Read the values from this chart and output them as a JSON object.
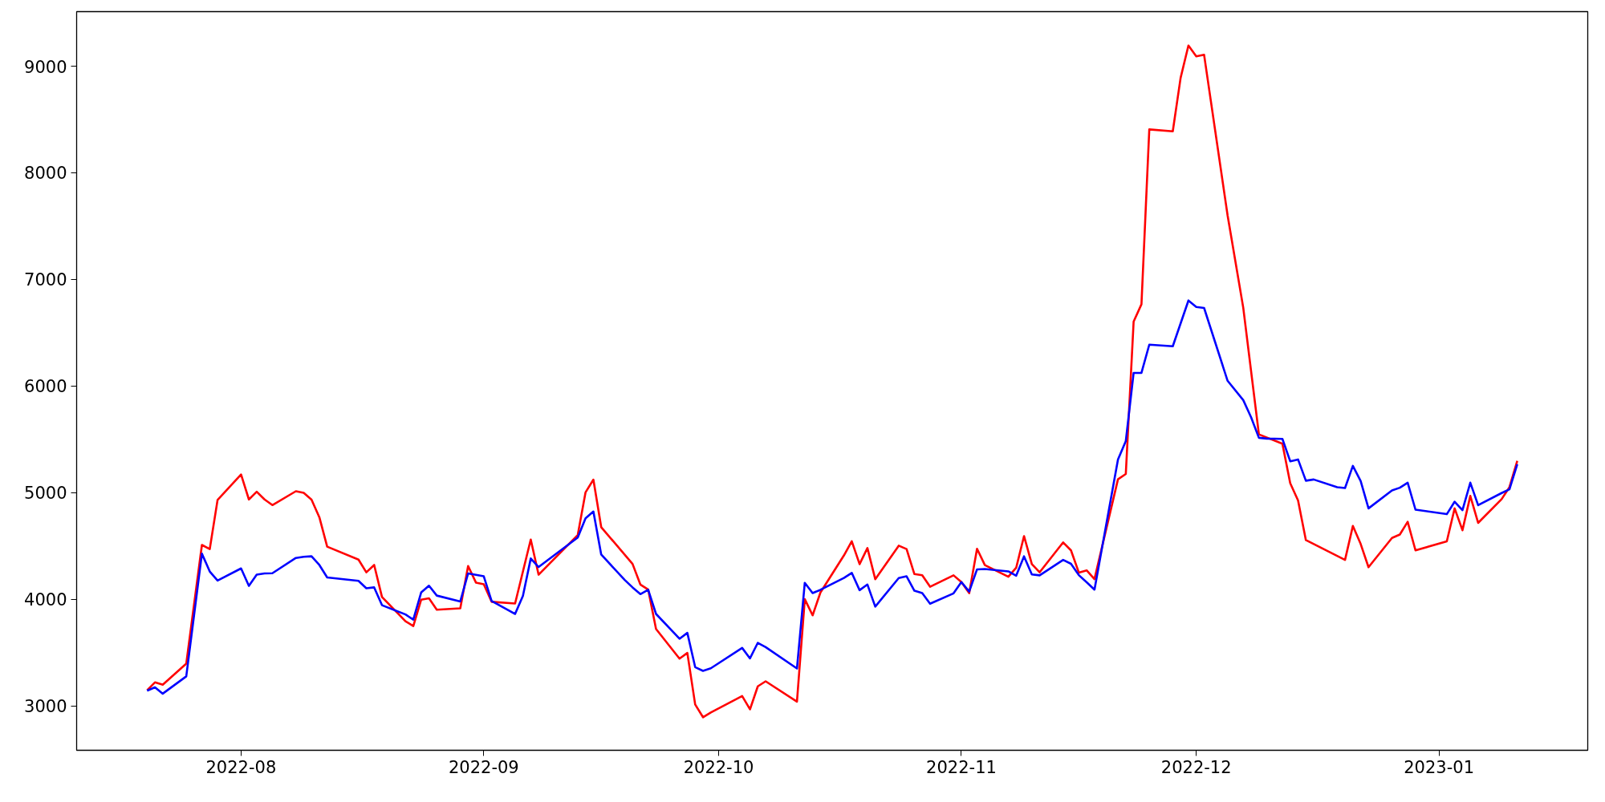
{
  "chart_data": {
    "type": "line",
    "xlim": [
      "2022-07-11",
      "2023-01-20"
    ],
    "ylim": [
      2583,
      9512
    ],
    "xticks": [
      {
        "value": "2022-08-01",
        "label": "2022-08"
      },
      {
        "value": "2022-09-01",
        "label": "2022-09"
      },
      {
        "value": "2022-10-01",
        "label": "2022-10"
      },
      {
        "value": "2022-11-01",
        "label": "2022-11"
      },
      {
        "value": "2022-12-01",
        "label": "2022-12"
      },
      {
        "value": "2023-01-01",
        "label": "2023-01"
      }
    ],
    "yticks": [
      3000,
      4000,
      5000,
      6000,
      7000,
      8000,
      9000
    ],
    "grid": false,
    "series": [
      {
        "color": "#ff0000",
        "x": [
          "2022-07-20",
          "2022-07-21",
          "2022-07-22",
          "2022-07-25",
          "2022-07-27",
          "2022-07-28",
          "2022-07-29",
          "2022-08-01",
          "2022-08-02",
          "2022-08-03",
          "2022-08-04",
          "2022-08-05",
          "2022-08-08",
          "2022-08-09",
          "2022-08-10",
          "2022-08-11",
          "2022-08-12",
          "2022-08-16",
          "2022-08-17",
          "2022-08-18",
          "2022-08-19",
          "2022-08-22",
          "2022-08-23",
          "2022-08-24",
          "2022-08-25",
          "2022-08-26",
          "2022-08-29",
          "2022-08-30",
          "2022-08-31",
          "2022-09-01",
          "2022-09-02",
          "2022-09-05",
          "2022-09-07",
          "2022-09-08",
          "2022-09-13",
          "2022-09-14",
          "2022-09-15",
          "2022-09-16",
          "2022-09-20",
          "2022-09-21",
          "2022-09-22",
          "2022-09-23",
          "2022-09-26",
          "2022-09-27",
          "2022-09-28",
          "2022-09-29",
          "2022-09-30",
          "2022-10-04",
          "2022-10-05",
          "2022-10-06",
          "2022-10-07",
          "2022-10-11",
          "2022-10-12",
          "2022-10-13",
          "2022-10-14",
          "2022-10-17",
          "2022-10-18",
          "2022-10-19",
          "2022-10-20",
          "2022-10-21",
          "2022-10-24",
          "2022-10-25",
          "2022-10-26",
          "2022-10-27",
          "2022-10-28",
          "2022-10-31",
          "2022-11-01",
          "2022-11-02",
          "2022-11-03",
          "2022-11-04",
          "2022-11-07",
          "2022-11-08",
          "2022-11-09",
          "2022-11-10",
          "2022-11-11",
          "2022-11-14",
          "2022-11-15",
          "2022-11-16",
          "2022-11-17",
          "2022-11-18",
          "2022-11-21",
          "2022-11-22",
          "2022-11-23",
          "2022-11-24",
          "2022-11-25",
          "2022-11-28",
          "2022-11-29",
          "2022-11-30",
          "2022-12-01",
          "2022-12-02",
          "2022-12-05",
          "2022-12-07",
          "2022-12-09",
          "2022-12-12",
          "2022-12-13",
          "2022-12-14",
          "2022-12-15",
          "2022-12-20",
          "2022-12-21",
          "2022-12-22",
          "2022-12-23",
          "2022-12-26",
          "2022-12-27",
          "2022-12-28",
          "2022-12-29",
          "2023-01-02",
          "2023-01-03",
          "2023-01-04",
          "2023-01-05",
          "2023-01-06",
          "2023-01-09",
          "2023-01-10",
          "2023-01-11"
        ],
        "values": [
          3146,
          3220,
          3198,
          3395,
          4509,
          4470,
          4931,
          5170,
          4936,
          5008,
          4936,
          4883,
          5013,
          4998,
          4934,
          4769,
          4493,
          4372,
          4252,
          4321,
          4021,
          3793,
          3748,
          3995,
          4008,
          3902,
          3915,
          4311,
          4156,
          4141,
          3976,
          3960,
          4560,
          4230,
          4602,
          5003,
          5122,
          4676,
          4331,
          4138,
          4090,
          3721,
          3443,
          3496,
          3013,
          2893,
          2938,
          3092,
          2967,
          3183,
          3230,
          3039,
          4000,
          3849,
          4063,
          4411,
          4544,
          4329,
          4480,
          4188,
          4502,
          4470,
          4236,
          4225,
          4117,
          4224,
          4161,
          4057,
          4473,
          4320,
          4211,
          4295,
          4592,
          4330,
          4253,
          4533,
          4458,
          4250,
          4271,
          4189,
          5125,
          5175,
          6604,
          6767,
          8407,
          8389,
          8890,
          9194,
          9093,
          9107,
          7601,
          6735,
          5546,
          5459,
          5088,
          4927,
          4555,
          4369,
          4687,
          4518,
          4300,
          4575,
          4607,
          4726,
          4458,
          4543,
          4852,
          4647,
          4969,
          4716,
          4939,
          5051,
          5298
        ]
      },
      {
        "color": "#0000ff",
        "x": [
          "2022-07-20",
          "2022-07-21",
          "2022-07-22",
          "2022-07-25",
          "2022-07-27",
          "2022-07-28",
          "2022-07-29",
          "2022-08-01",
          "2022-08-02",
          "2022-08-03",
          "2022-08-04",
          "2022-08-05",
          "2022-08-08",
          "2022-08-09",
          "2022-08-10",
          "2022-08-11",
          "2022-08-12",
          "2022-08-16",
          "2022-08-17",
          "2022-08-18",
          "2022-08-19",
          "2022-08-22",
          "2022-08-23",
          "2022-08-24",
          "2022-08-25",
          "2022-08-26",
          "2022-08-29",
          "2022-08-30",
          "2022-08-31",
          "2022-09-01",
          "2022-09-02",
          "2022-09-05",
          "2022-09-06",
          "2022-09-07",
          "2022-09-08",
          "2022-09-13",
          "2022-09-14",
          "2022-09-15",
          "2022-09-16",
          "2022-09-19",
          "2022-09-20",
          "2022-09-21",
          "2022-09-22",
          "2022-09-23",
          "2022-09-26",
          "2022-09-27",
          "2022-09-28",
          "2022-09-29",
          "2022-09-30",
          "2022-10-04",
          "2022-10-05",
          "2022-10-06",
          "2022-10-07",
          "2022-10-11",
          "2022-10-12",
          "2022-10-13",
          "2022-10-14",
          "2022-10-17",
          "2022-10-18",
          "2022-10-19",
          "2022-10-20",
          "2022-10-21",
          "2022-10-24",
          "2022-10-25",
          "2022-10-26",
          "2022-10-27",
          "2022-10-28",
          "2022-10-31",
          "2022-11-01",
          "2022-11-02",
          "2022-11-03",
          "2022-11-04",
          "2022-11-07",
          "2022-11-08",
          "2022-11-09",
          "2022-11-10",
          "2022-11-11",
          "2022-11-14",
          "2022-11-15",
          "2022-11-16",
          "2022-11-17",
          "2022-11-18",
          "2022-11-21",
          "2022-11-22",
          "2022-11-23",
          "2022-11-24",
          "2022-11-25",
          "2022-11-28",
          "2022-11-30",
          "2022-12-01",
          "2022-12-02",
          "2022-12-05",
          "2022-12-07",
          "2022-12-08",
          "2022-12-09",
          "2022-12-10",
          "2022-12-12",
          "2022-12-13",
          "2022-12-14",
          "2022-12-15",
          "2022-12-16",
          "2022-12-19",
          "2022-12-20",
          "2022-12-21",
          "2022-12-22",
          "2022-12-23",
          "2022-12-26",
          "2022-12-27",
          "2022-12-28",
          "2022-12-29",
          "2023-01-02",
          "2023-01-03",
          "2023-01-04",
          "2023-01-05",
          "2023-01-06",
          "2023-01-09",
          "2023-01-10",
          "2023-01-11"
        ],
        "values": [
          3142,
          3174,
          3114,
          3276,
          4427,
          4260,
          4175,
          4289,
          4125,
          4230,
          4242,
          4244,
          4387,
          4398,
          4403,
          4321,
          4204,
          4172,
          4103,
          4111,
          3944,
          3857,
          3809,
          4063,
          4127,
          4034,
          3979,
          4242,
          4228,
          4215,
          3984,
          3862,
          4032,
          4382,
          4302,
          4578,
          4759,
          4823,
          4419,
          4181,
          4111,
          4048,
          4088,
          3862,
          3629,
          3684,
          3363,
          3328,
          3352,
          3543,
          3445,
          3591,
          3551,
          3350,
          4154,
          4058,
          4088,
          4199,
          4247,
          4085,
          4138,
          3931,
          4199,
          4215,
          4080,
          4057,
          3958,
          4055,
          4161,
          4072,
          4280,
          4283,
          4261,
          4221,
          4402,
          4233,
          4224,
          4369,
          4332,
          4226,
          4159,
          4090,
          5311,
          5484,
          6123,
          6123,
          6388,
          6373,
          6802,
          6742,
          6732,
          6049,
          5868,
          5707,
          5514,
          5507,
          5504,
          5294,
          5311,
          5112,
          5123,
          5051,
          5043,
          5251,
          5108,
          4852,
          5021,
          5046,
          5093,
          4840,
          4798,
          4915,
          4835,
          5093,
          4882,
          4996,
          5031,
          5266
        ]
      }
    ]
  }
}
